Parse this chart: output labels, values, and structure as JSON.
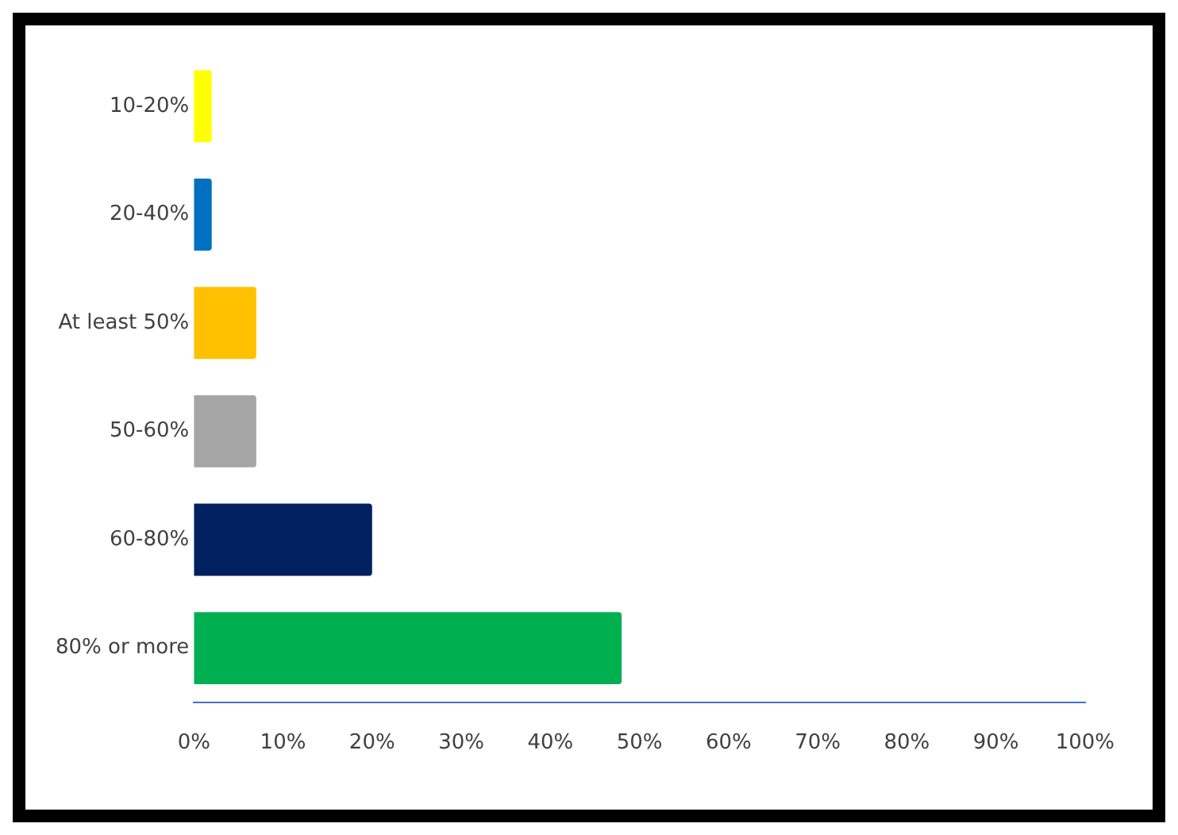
{
  "chart_data": {
    "type": "bar",
    "orientation": "horizontal",
    "categories": [
      "10-20%",
      "20-40%",
      "At least 50%",
      "50-60%",
      "60-80%",
      "80% or more"
    ],
    "values": [
      2,
      2,
      7,
      7,
      20,
      48
    ],
    "colors": [
      "#ffff00",
      "#0070c0",
      "#ffc000",
      "#a5a5a5",
      "#002060",
      "#00b050"
    ],
    "xlim": [
      0,
      100
    ],
    "xticks": [
      {
        "value": 0,
        "label": "0%"
      },
      {
        "value": 10,
        "label": "10%"
      },
      {
        "value": 20,
        "label": "20%"
      },
      {
        "value": 30,
        "label": "30%"
      },
      {
        "value": 40,
        "label": "40%"
      },
      {
        "value": 50,
        "label": "50%"
      },
      {
        "value": 60,
        "label": "60%"
      },
      {
        "value": 70,
        "label": "70%"
      },
      {
        "value": 80,
        "label": "80%"
      },
      {
        "value": 90,
        "label": "90%"
      },
      {
        "value": 100,
        "label": "100%"
      }
    ],
    "grid": false,
    "legend": false
  }
}
